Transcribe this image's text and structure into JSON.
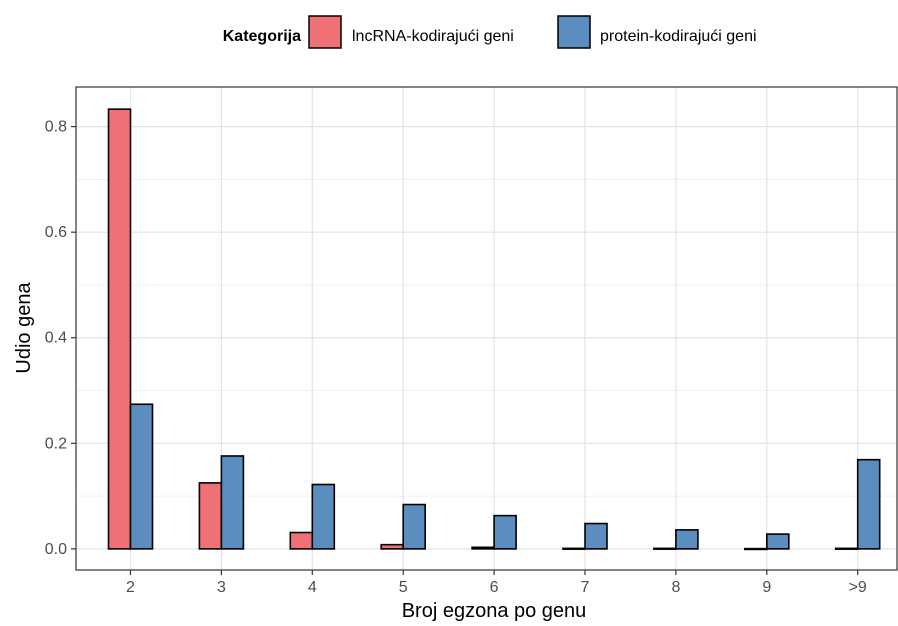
{
  "chart_data": {
    "type": "bar",
    "title": "",
    "xlabel": "Broj egzona po genu",
    "ylabel": "Udio gena",
    "categories": [
      "2",
      "3",
      "4",
      "5",
      "6",
      "7",
      "8",
      "9",
      ">9"
    ],
    "ylim": [
      -0.04,
      0.875
    ],
    "yticks": [
      0.0,
      0.2,
      0.4,
      0.6,
      0.8
    ],
    "ytick_labels": [
      "0.0",
      "0.2",
      "0.4",
      "0.6",
      "0.8"
    ],
    "grid": true,
    "legend": {
      "title": "Kategorija",
      "position": "top"
    },
    "series": [
      {
        "name": "lncRNA-kodirajući geni",
        "color": "#F07175",
        "values": [
          0.833,
          0.125,
          0.031,
          0.008,
          0.003,
          0.001,
          0.001,
          0.0005,
          0.001
        ]
      },
      {
        "name": "protein-kodirajući geni",
        "color": "#5B8DBE",
        "values": [
          0.274,
          0.176,
          0.122,
          0.084,
          0.063,
          0.048,
          0.036,
          0.028,
          0.169
        ]
      }
    ]
  }
}
